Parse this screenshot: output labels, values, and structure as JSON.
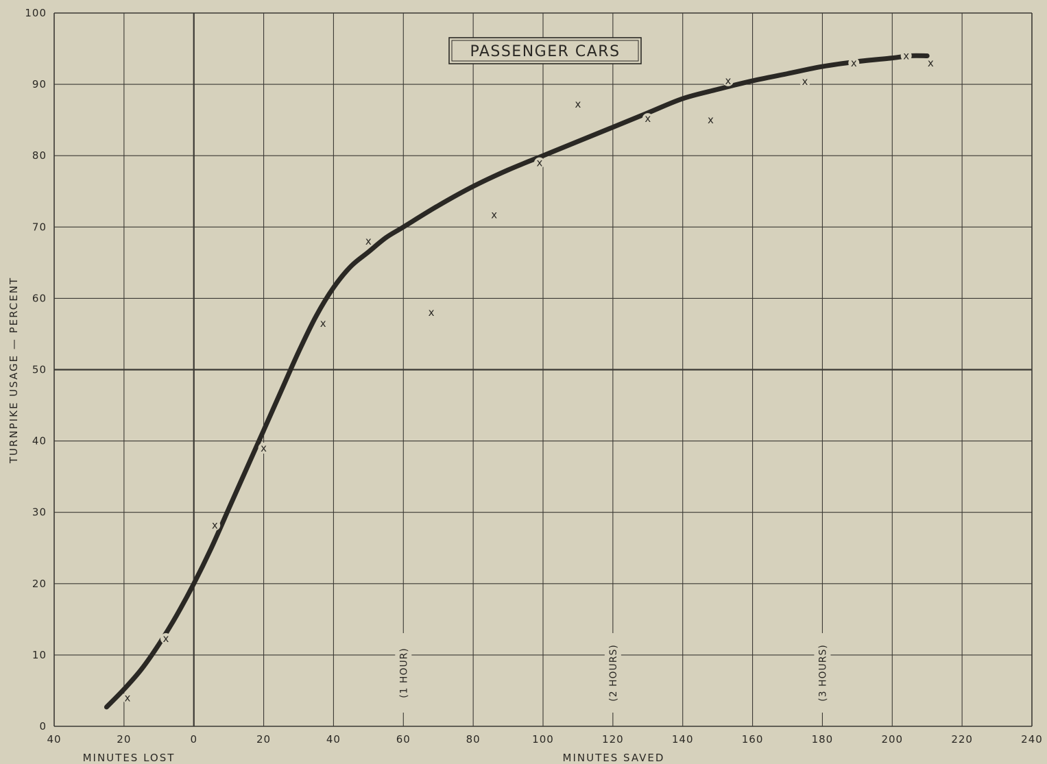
{
  "chart_data": {
    "type": "scatter",
    "title": "PASSENGER CARS",
    "ylabel": "TURNPIKE USAGE — PERCENT",
    "xlabel_left": "MINUTES LOST",
    "xlabel_right": "MINUTES SAVED",
    "xlim": [
      -40,
      240
    ],
    "ylim": [
      0,
      100
    ],
    "x_ticks": [
      -40,
      -20,
      0,
      20,
      40,
      60,
      80,
      100,
      120,
      140,
      160,
      180,
      200,
      220,
      240
    ],
    "x_tick_labels": [
      "40",
      "20",
      "0",
      "20",
      "40",
      "60",
      "80",
      "100",
      "120",
      "140",
      "160",
      "180",
      "200",
      "220",
      "240"
    ],
    "y_ticks": [
      0,
      10,
      20,
      30,
      40,
      50,
      60,
      70,
      80,
      90,
      100
    ],
    "y_tick_labels": [
      "0",
      "10",
      "20",
      "30",
      "40",
      "50",
      "60",
      "70",
      "80",
      "90",
      "100"
    ],
    "grid": true,
    "point_marker": "x",
    "annotations": [
      {
        "x": 60,
        "text": "(1 HOUR)"
      },
      {
        "x": 120,
        "text": "(2 HOURS)"
      },
      {
        "x": 180,
        "text": "(3 HOURS)"
      }
    ],
    "series": [
      {
        "kind": "points",
        "x": [
          -19,
          -8,
          6,
          20,
          37,
          50,
          68,
          86,
          99,
          110,
          130,
          148,
          153,
          175,
          189,
          204,
          211
        ],
        "y": [
          4,
          12.3,
          28.2,
          39,
          56.5,
          68,
          58,
          71.7,
          79,
          87.2,
          85.2,
          85,
          90.5,
          90.4,
          93,
          94,
          93
        ]
      },
      {
        "kind": "fitted-curve",
        "x": [
          -25,
          -20,
          -15,
          -10,
          -5,
          0,
          5,
          10,
          15,
          20,
          25,
          30,
          35,
          40,
          45,
          50,
          55,
          60,
          70,
          80,
          90,
          100,
          110,
          120,
          130,
          140,
          150,
          160,
          170,
          180,
          190,
          200,
          205,
          210
        ],
        "y": [
          2.7,
          5.2,
          8,
          11.5,
          15.5,
          20,
          25,
          30.5,
          36,
          41.5,
          47,
          52.5,
          57.5,
          61.5,
          64.5,
          66.5,
          68.5,
          70,
          73,
          75.7,
          78,
          80,
          82,
          84,
          86,
          88,
          89.3,
          90.5,
          91.5,
          92.5,
          93.2,
          93.7,
          94,
          94
        ]
      }
    ]
  },
  "colors": {
    "background": "#d6d1bc",
    "ink": "#2a2824",
    "grid": "#3a3833"
  }
}
